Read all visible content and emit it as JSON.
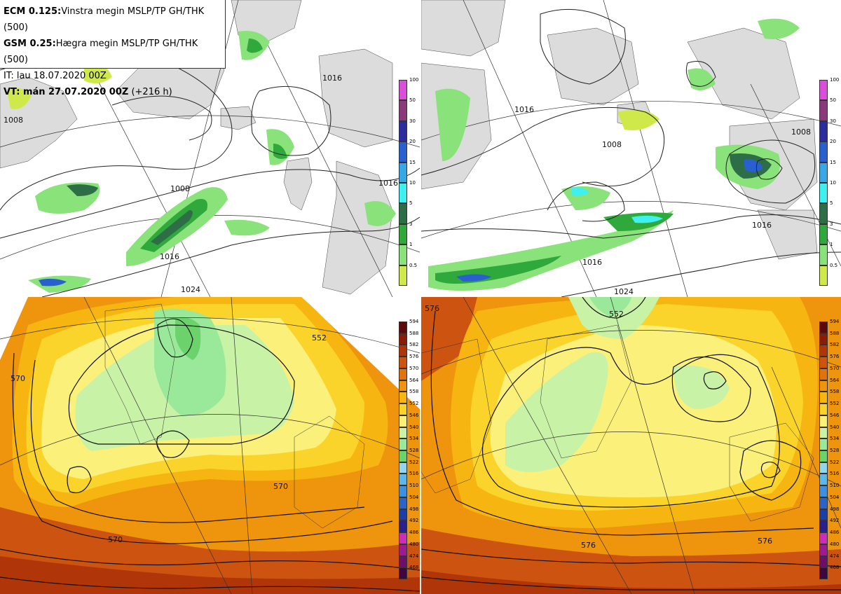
{
  "info": {
    "line1_bold": "ECM 0.125:",
    "line1_text": "Vinstra megin MSLP/TP GH/THK (500)",
    "line2_bold": "GSM 0.25:",
    "line2_text": "Hægra megin MSLP/TP GH/THK (500)",
    "line3": "IT: lau 18.07.2020 00Z",
    "line4_bold": "VT: mán 27.07.2020 00Z",
    "line4_text": " (+216 h)"
  },
  "precip_scale": {
    "labels": [
      "100",
      "50",
      "30",
      "20",
      "15",
      "10",
      "5",
      "3",
      "1",
      "0.5"
    ],
    "colors": [
      "#d94fd9",
      "#8a3a7a",
      "#2c2c9e",
      "#2a5fd0",
      "#36a8e6",
      "#3ff0f0",
      "#2e6e46",
      "#2fa83c",
      "#8ae27a",
      "#cfe84a"
    ]
  },
  "thk_scale": {
    "labels": [
      "594",
      "588",
      "582",
      "576",
      "570",
      "564",
      "558",
      "552",
      "546",
      "540",
      "534",
      "528",
      "522",
      "516",
      "510",
      "504",
      "498",
      "492",
      "486",
      "480",
      "474",
      "468"
    ],
    "colors": [
      "#5a0a0a",
      "#8a1c0a",
      "#b0360a",
      "#cc5410",
      "#e0730c",
      "#ef940d",
      "#f7b511",
      "#fad42a",
      "#fbf07a",
      "#c8f2a6",
      "#9ae89a",
      "#6cd26c",
      "#8fd6ee",
      "#5cb8ea",
      "#3d8fdf",
      "#2a64c8",
      "#1b3fa6",
      "#2a208c",
      "#c92fb8",
      "#9b1c8f",
      "#6a0f6a",
      "#3d063e"
    ]
  },
  "contour_labels": {
    "top_left": [
      "1008",
      "1008",
      "1016",
      "1024",
      "1016",
      "1016"
    ],
    "top_right": [
      "1016",
      "1008",
      "1016",
      "1016",
      "1008",
      "1024"
    ],
    "bottom_left": [
      "570",
      "570",
      "570",
      "552"
    ],
    "bottom_right": [
      "576",
      "576",
      "576",
      "552"
    ]
  }
}
